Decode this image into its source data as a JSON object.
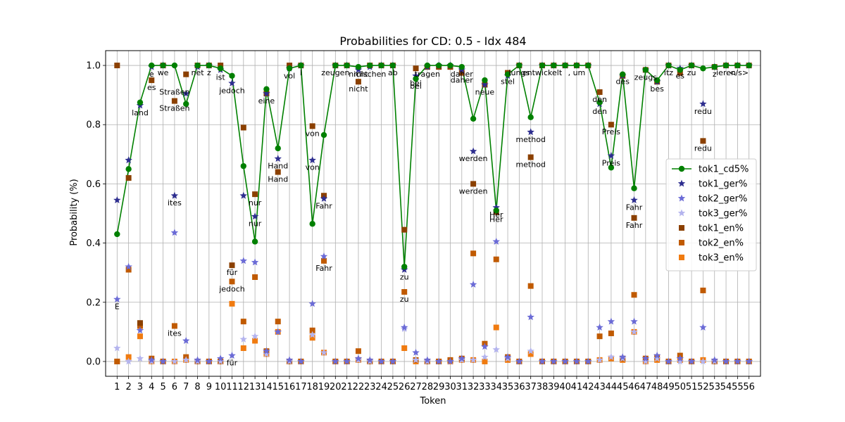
{
  "chart_data": {
    "type": "scatter",
    "title": "Probabilities for CD: 0.5 - Idx 484",
    "xlabel": "Token",
    "ylabel": "Probability (%)",
    "xlim": [
      0,
      57
    ],
    "ylim": [
      -0.05,
      1.05
    ],
    "yticks": [
      0.0,
      0.2,
      0.4,
      0.6,
      0.8,
      1.0
    ],
    "ytick_labels": [
      "0.0",
      "0.2",
      "0.4",
      "0.6",
      "0.8",
      "1.0"
    ],
    "grid": true,
    "legend_position": "center-right",
    "x": [
      1,
      2,
      3,
      4,
      5,
      6,
      7,
      8,
      9,
      10,
      11,
      12,
      13,
      14,
      15,
      16,
      17,
      18,
      19,
      20,
      21,
      22,
      23,
      24,
      25,
      26,
      27,
      28,
      29,
      30,
      31,
      32,
      33,
      34,
      35,
      36,
      37,
      38,
      39,
      40,
      41,
      42,
      43,
      44,
      45,
      46,
      47,
      48,
      49,
      50,
      51,
      52,
      53,
      54,
      55,
      56
    ],
    "series": [
      {
        "name": "tok1_cd5%",
        "color": "#008000",
        "marker": "circle",
        "line": true,
        "values": [
          0.43,
          0.65,
          0.875,
          1.0,
          1.0,
          1.0,
          0.87,
          1.0,
          1.0,
          0.99,
          0.965,
          0.66,
          0.405,
          0.92,
          0.72,
          0.99,
          1.0,
          0.465,
          0.765,
          1.0,
          1.0,
          0.995,
          1.0,
          1.0,
          1.0,
          0.32,
          0.955,
          1.0,
          1.0,
          1.0,
          0.995,
          0.82,
          0.95,
          0.51,
          0.97,
          1.0,
          0.825,
          1.0,
          1.0,
          1.0,
          1.0,
          1.0,
          0.875,
          0.655,
          0.97,
          0.585,
          0.985,
          0.95,
          1.0,
          0.985,
          1.0,
          0.99,
          0.995,
          1.0,
          1.0,
          1.0
        ]
      },
      {
        "name": "tok1_ger%",
        "color": "#2e2e8f",
        "marker": "star",
        "values": [
          0.545,
          0.68,
          0.865,
          0.995,
          1.0,
          0.56,
          0.905,
          0.995,
          1.0,
          0.985,
          0.94,
          0.56,
          0.49,
          0.905,
          0.685,
          0.99,
          1.0,
          0.68,
          0.55,
          1.0,
          1.0,
          0.985,
          0.995,
          1.0,
          1.0,
          0.31,
          0.965,
          0.995,
          1.0,
          1.0,
          0.985,
          0.71,
          0.935,
          0.52,
          0.965,
          1.0,
          0.775,
          1.0,
          1.0,
          1.0,
          1.0,
          1.0,
          0.87,
          0.695,
          0.965,
          0.545,
          0.985,
          0.945,
          1.0,
          0.99,
          1.0,
          0.87,
          0.995,
          1.0,
          1.0,
          1.0
        ]
      },
      {
        "name": "tok2_ger%",
        "color": "#6b6bd6",
        "marker": "star",
        "values": [
          0.21,
          0.32,
          0.105,
          0.005,
          0.0,
          0.435,
          0.07,
          0.005,
          0.0,
          0.01,
          0.02,
          0.34,
          0.335,
          0.035,
          0.1,
          0.005,
          0.0,
          0.195,
          0.355,
          0.0,
          0.0,
          0.01,
          0.005,
          0.0,
          0.0,
          0.115,
          0.03,
          0.005,
          0.0,
          0.0,
          0.01,
          0.26,
          0.05,
          0.405,
          0.015,
          0.0,
          0.15,
          0.0,
          0.0,
          0.0,
          0.0,
          0.0,
          0.115,
          0.135,
          0.015,
          0.135,
          0.01,
          0.02,
          0.0,
          0.01,
          0.0,
          0.115,
          0.005,
          0.0,
          0.0,
          0.0
        ]
      },
      {
        "name": "tok3_ger%",
        "color": "#b4b4ee",
        "marker": "star",
        "values": [
          0.045,
          0.0,
          0.01,
          0.0,
          0.0,
          0.0,
          0.005,
          0.0,
          0.0,
          0.0,
          0.02,
          0.075,
          0.085,
          0.025,
          0.1,
          0.0,
          0.0,
          0.09,
          0.03,
          0.0,
          0.0,
          0.005,
          0.0,
          0.0,
          0.0,
          0.11,
          0.005,
          0.0,
          0.0,
          0.0,
          0.005,
          0.005,
          0.015,
          0.04,
          0.01,
          0.0,
          0.035,
          0.0,
          0.0,
          0.0,
          0.0,
          0.0,
          0.005,
          0.015,
          0.01,
          0.1,
          0.0,
          0.01,
          0.0,
          0.0,
          0.0,
          0.0,
          0.0,
          0.0,
          0.0,
          0.0
        ]
      },
      {
        "name": "tok1_en%",
        "color": "#8b4000",
        "marker": "square",
        "values": [
          1.0,
          0.62,
          0.13,
          0.95,
          1.0,
          0.88,
          0.97,
          1.0,
          1.0,
          1.0,
          0.325,
          0.79,
          0.565,
          0.905,
          0.64,
          1.0,
          1.0,
          0.795,
          0.56,
          1.0,
          1.0,
          0.945,
          1.0,
          1.0,
          1.0,
          0.445,
          0.99,
          0.995,
          0.995,
          0.995,
          0.975,
          0.6,
          0.935,
          0.505,
          0.975,
          1.0,
          0.69,
          1.0,
          1.0,
          1.0,
          1.0,
          1.0,
          0.91,
          0.8,
          0.965,
          0.485,
          0.985,
          0.945,
          1.0,
          0.975,
          1.0,
          0.745,
          0.995,
          1.0,
          1.0,
          1.0
        ]
      },
      {
        "name": "tok2_en%",
        "color": "#c05a00",
        "marker": "square",
        "values": [
          0.0,
          0.31,
          0.12,
          0.01,
          0.0,
          0.12,
          0.015,
          0.0,
          0.0,
          0.0,
          0.27,
          0.135,
          0.285,
          0.035,
          0.135,
          0.0,
          0.0,
          0.105,
          0.34,
          0.0,
          0.0,
          0.035,
          0.0,
          0.0,
          0.0,
          0.235,
          0.005,
          0.0,
          0.0,
          0.005,
          0.01,
          0.365,
          0.06,
          0.345,
          0.015,
          0.0,
          0.255,
          0.0,
          0.0,
          0.0,
          0.0,
          0.0,
          0.085,
          0.095,
          0.01,
          0.225,
          0.01,
          0.015,
          0.0,
          0.02,
          0.0,
          0.24,
          0.0,
          0.0,
          0.0,
          0.0
        ]
      },
      {
        "name": "tok3_en%",
        "color": "#f07b10",
        "marker": "square",
        "values": [
          0.0,
          0.015,
          0.085,
          0.0,
          0.0,
          0.0,
          0.005,
          0.0,
          0.0,
          0.0,
          0.195,
          0.045,
          0.07,
          0.025,
          0.1,
          0.0,
          0.0,
          0.08,
          0.03,
          0.0,
          0.0,
          0.005,
          0.0,
          0.0,
          0.0,
          0.045,
          0.0,
          0.0,
          0.0,
          0.0,
          0.005,
          0.005,
          0.0,
          0.115,
          0.005,
          0.0,
          0.025,
          0.0,
          0.0,
          0.0,
          0.0,
          0.0,
          0.005,
          0.01,
          0.005,
          0.1,
          0.0,
          0.005,
          0.0,
          0.005,
          0.0,
          0.005,
          0.0,
          0.0,
          0.0,
          0.0
        ]
      }
    ],
    "annotations": [
      {
        "x": 1,
        "y": 0.21,
        "text": "E"
      },
      {
        "x": 3,
        "y": 0.865,
        "text": "land"
      },
      {
        "x": 4,
        "y": 0.995,
        "text": "e"
      },
      {
        "x": 4,
        "y": 0.95,
        "text": "es"
      },
      {
        "x": 5,
        "y": 1.0,
        "text": "we"
      },
      {
        "x": 6,
        "y": 0.935,
        "text": "Straßen"
      },
      {
        "x": 6,
        "y": 0.88,
        "text": "Straßen"
      },
      {
        "x": 6,
        "y": 0.56,
        "text": "ites"
      },
      {
        "x": 6,
        "y": 0.12,
        "text": "ites"
      },
      {
        "x": 8,
        "y": 1.0,
        "text": "net"
      },
      {
        "x": 9,
        "y": 1.0,
        "text": "z"
      },
      {
        "x": 10,
        "y": 0.985,
        "text": "ist"
      },
      {
        "x": 11,
        "y": 0.94,
        "text": "jedoch"
      },
      {
        "x": 11,
        "y": 0.27,
        "text": "jedoch"
      },
      {
        "x": 11,
        "y": 0.325,
        "text": "für"
      },
      {
        "x": 11,
        "y": 0.02,
        "text": "für"
      },
      {
        "x": 13,
        "y": 0.56,
        "text": "nur"
      },
      {
        "x": 13,
        "y": 0.49,
        "text": "nur"
      },
      {
        "x": 14,
        "y": 0.905,
        "text": "eine"
      },
      {
        "x": 15,
        "y": 0.685,
        "text": "Hand"
      },
      {
        "x": 15,
        "y": 0.64,
        "text": "Hand"
      },
      {
        "x": 16,
        "y": 0.99,
        "text": "vol"
      },
      {
        "x": 17,
        "y": 1.0,
        "text": "l"
      },
      {
        "x": 18,
        "y": 0.795,
        "text": "von"
      },
      {
        "x": 18,
        "y": 0.68,
        "text": "von"
      },
      {
        "x": 19,
        "y": 0.55,
        "text": "Fahr"
      },
      {
        "x": 19,
        "y": 0.34,
        "text": "Fahr"
      },
      {
        "x": 20,
        "y": 1.0,
        "text": "zeugen"
      },
      {
        "x": 22,
        "y": 0.995,
        "text": "nicht"
      },
      {
        "x": 22,
        "y": 0.945,
        "text": "nicht"
      },
      {
        "x": 23,
        "y": 0.995,
        "text": "mischen"
      },
      {
        "x": 25,
        "y": 1.0,
        "text": "ab"
      },
      {
        "x": 26,
        "y": 0.31,
        "text": "zu"
      },
      {
        "x": 26,
        "y": 0.235,
        "text": "zu"
      },
      {
        "x": 27,
        "y": 0.965,
        "text": "bei"
      },
      {
        "x": 27,
        "y": 0.955,
        "text": "bei"
      },
      {
        "x": 28,
        "y": 0.995,
        "text": "tragen"
      },
      {
        "x": 31,
        "y": 0.995,
        "text": "daher"
      },
      {
        "x": 31,
        "y": 0.975,
        "text": "daher"
      },
      {
        "x": 32,
        "y": 0.71,
        "text": "werden"
      },
      {
        "x": 32,
        "y": 0.6,
        "text": "werden"
      },
      {
        "x": 33,
        "y": 0.935,
        "text": "neue"
      },
      {
        "x": 34,
        "y": 0.52,
        "text": "Her"
      },
      {
        "x": 34,
        "y": 0.505,
        "text": "Her"
      },
      {
        "x": 35,
        "y": 0.97,
        "text": "stel"
      },
      {
        "x": 36,
        "y": 1.0,
        "text": "lungs"
      },
      {
        "x": 37,
        "y": 0.775,
        "text": "method"
      },
      {
        "x": 37,
        "y": 0.69,
        "text": "method"
      },
      {
        "x": 38,
        "y": 1.0,
        "text": "entwickelt"
      },
      {
        "x": 41,
        "y": 1.0,
        "text": ", um"
      },
      {
        "x": 43,
        "y": 0.91,
        "text": "den"
      },
      {
        "x": 43,
        "y": 0.87,
        "text": "den"
      },
      {
        "x": 44,
        "y": 0.8,
        "text": "Preis"
      },
      {
        "x": 44,
        "y": 0.695,
        "text": "Preis"
      },
      {
        "x": 45,
        "y": 0.97,
        "text": "des"
      },
      {
        "x": 46,
        "y": 0.545,
        "text": "Fahr"
      },
      {
        "x": 46,
        "y": 0.485,
        "text": "Fahr"
      },
      {
        "x": 47,
        "y": 0.985,
        "text": "zeugs"
      },
      {
        "x": 48,
        "y": 0.945,
        "text": "bes"
      },
      {
        "x": 49,
        "y": 1.0,
        "text": "itz"
      },
      {
        "x": 50,
        "y": 0.99,
        "text": "es"
      },
      {
        "x": 51,
        "y": 1.0,
        "text": "zu"
      },
      {
        "x": 52,
        "y": 0.87,
        "text": "redu"
      },
      {
        "x": 52,
        "y": 0.745,
        "text": "redu"
      },
      {
        "x": 53,
        "y": 0.995,
        "text": "z"
      },
      {
        "x": 54,
        "y": 1.0,
        "text": "ieren"
      },
      {
        "x": 55,
        "y": 1.0,
        "text": ".</s>"
      }
    ]
  }
}
